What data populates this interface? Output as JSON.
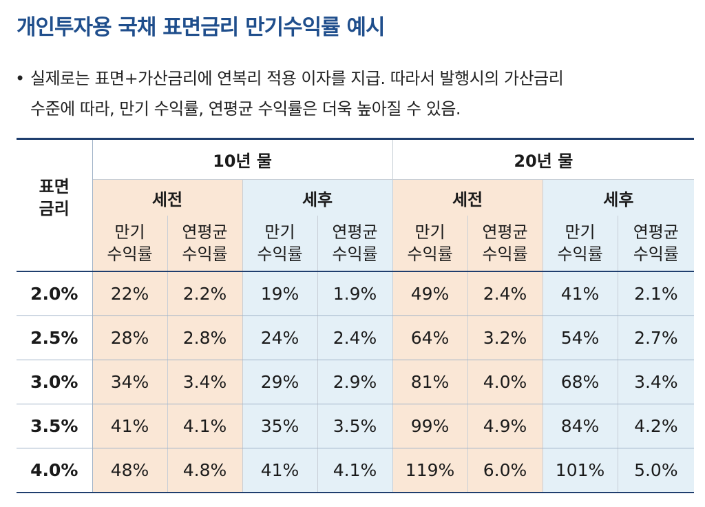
{
  "title": "개인투자용 국채 표면금리 만기수익률 예시",
  "bullet": {
    "marker": "•",
    "line1": "실제로는 표면+가산금리에 연복리 적용 이자를 지급. 따라서 발행시의 가산금리",
    "line2": "수준에 따라, 만기 수익률, 연평균 수익률은 더욱 높아질 수 있음."
  },
  "table": {
    "rate_header_line1": "표면",
    "rate_header_line2": "금리",
    "years": [
      "10년 물",
      "20년 물"
    ],
    "tax_headers": [
      "세전",
      "세후",
      "세전",
      "세후"
    ],
    "metric_headers": [
      {
        "l1": "만기",
        "l2": "수익률"
      },
      {
        "l1": "연평균",
        "l2": "수익률"
      },
      {
        "l1": "만기",
        "l2": "수익률"
      },
      {
        "l1": "연평균",
        "l2": "수익률"
      },
      {
        "l1": "만기",
        "l2": "수익률"
      },
      {
        "l1": "연평균",
        "l2": "수익률"
      },
      {
        "l1": "만기",
        "l2": "수익률"
      },
      {
        "l1": "연평균",
        "l2": "수익률"
      }
    ],
    "rows": [
      {
        "rate": "2.0%",
        "v": [
          "22%",
          "2.2%",
          "19%",
          "1.9%",
          "49%",
          "2.4%",
          "41%",
          "2.1%"
        ]
      },
      {
        "rate": "2.5%",
        "v": [
          "28%",
          "2.8%",
          "24%",
          "2.4%",
          "64%",
          "3.2%",
          "54%",
          "2.7%"
        ]
      },
      {
        "rate": "3.0%",
        "v": [
          "34%",
          "3.4%",
          "29%",
          "2.9%",
          "81%",
          "4.0%",
          "68%",
          "3.4%"
        ]
      },
      {
        "rate": "3.5%",
        "v": [
          "41%",
          "4.1%",
          "35%",
          "3.5%",
          "99%",
          "4.9%",
          "84%",
          "4.2%"
        ]
      },
      {
        "rate": "4.0%",
        "v": [
          "48%",
          "4.8%",
          "41%",
          "4.1%",
          "119%",
          "6.0%",
          "101%",
          "5.0%"
        ]
      }
    ]
  }
}
